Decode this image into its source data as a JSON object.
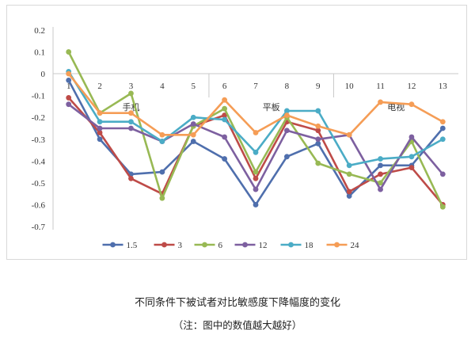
{
  "caption": {
    "title": "不同条件下被试者对比敏感度下降幅度的变化",
    "note": "（注：图中的数值越大越好）"
  },
  "chart_data": {
    "type": "line",
    "x": [
      1,
      2,
      3,
      4,
      5,
      6,
      7,
      8,
      9,
      10,
      11,
      12,
      13
    ],
    "ylim": [
      -0.7,
      0.2
    ],
    "yticks": [
      "0.2",
      "0.1",
      "0",
      "-0.1",
      "-0.2",
      "-0.3",
      "-0.4",
      "-0.5",
      "-0.6",
      "-0.7"
    ],
    "grid": false,
    "legend_position": "bottom",
    "groups": [
      {
        "label": "手机",
        "from": 1,
        "to": 5
      },
      {
        "label": "平板",
        "from": 6,
        "to": 9
      },
      {
        "label": "电视",
        "from": 10,
        "to": 13
      }
    ],
    "series": [
      {
        "name": "1.5",
        "color": "#4f6fad",
        "values": [
          -0.03,
          -0.3,
          -0.46,
          -0.45,
          -0.31,
          -0.39,
          -0.6,
          -0.38,
          -0.32,
          -0.56,
          -0.42,
          -0.42,
          -0.25
        ]
      },
      {
        "name": "3",
        "color": "#be4b48",
        "values": [
          -0.11,
          -0.27,
          -0.48,
          -0.55,
          -0.24,
          -0.19,
          -0.48,
          -0.22,
          -0.26,
          -0.54,
          -0.46,
          -0.43,
          -0.6
        ]
      },
      {
        "name": "6",
        "color": "#98b954",
        "values": [
          0.1,
          -0.18,
          -0.09,
          -0.57,
          -0.24,
          -0.16,
          -0.45,
          -0.2,
          -0.41,
          -0.46,
          -0.5,
          -0.31,
          -0.61
        ]
      },
      {
        "name": "12",
        "color": "#7d60a0",
        "values": [
          -0.14,
          -0.25,
          -0.25,
          -0.31,
          -0.23,
          -0.29,
          -0.53,
          -0.26,
          -0.3,
          -0.28,
          -0.53,
          -0.29,
          -0.46
        ]
      },
      {
        "name": "18",
        "color": "#4bacc6",
        "values": [
          0.01,
          -0.22,
          -0.22,
          -0.31,
          -0.2,
          -0.21,
          -0.36,
          -0.17,
          -0.17,
          -0.42,
          -0.39,
          -0.38,
          -0.3
        ]
      },
      {
        "name": "24",
        "color": "#f59d56",
        "values": [
          0.0,
          -0.18,
          -0.18,
          -0.28,
          -0.28,
          -0.12,
          -0.27,
          -0.19,
          -0.24,
          -0.28,
          -0.13,
          -0.14,
          -0.22
        ]
      }
    ]
  }
}
